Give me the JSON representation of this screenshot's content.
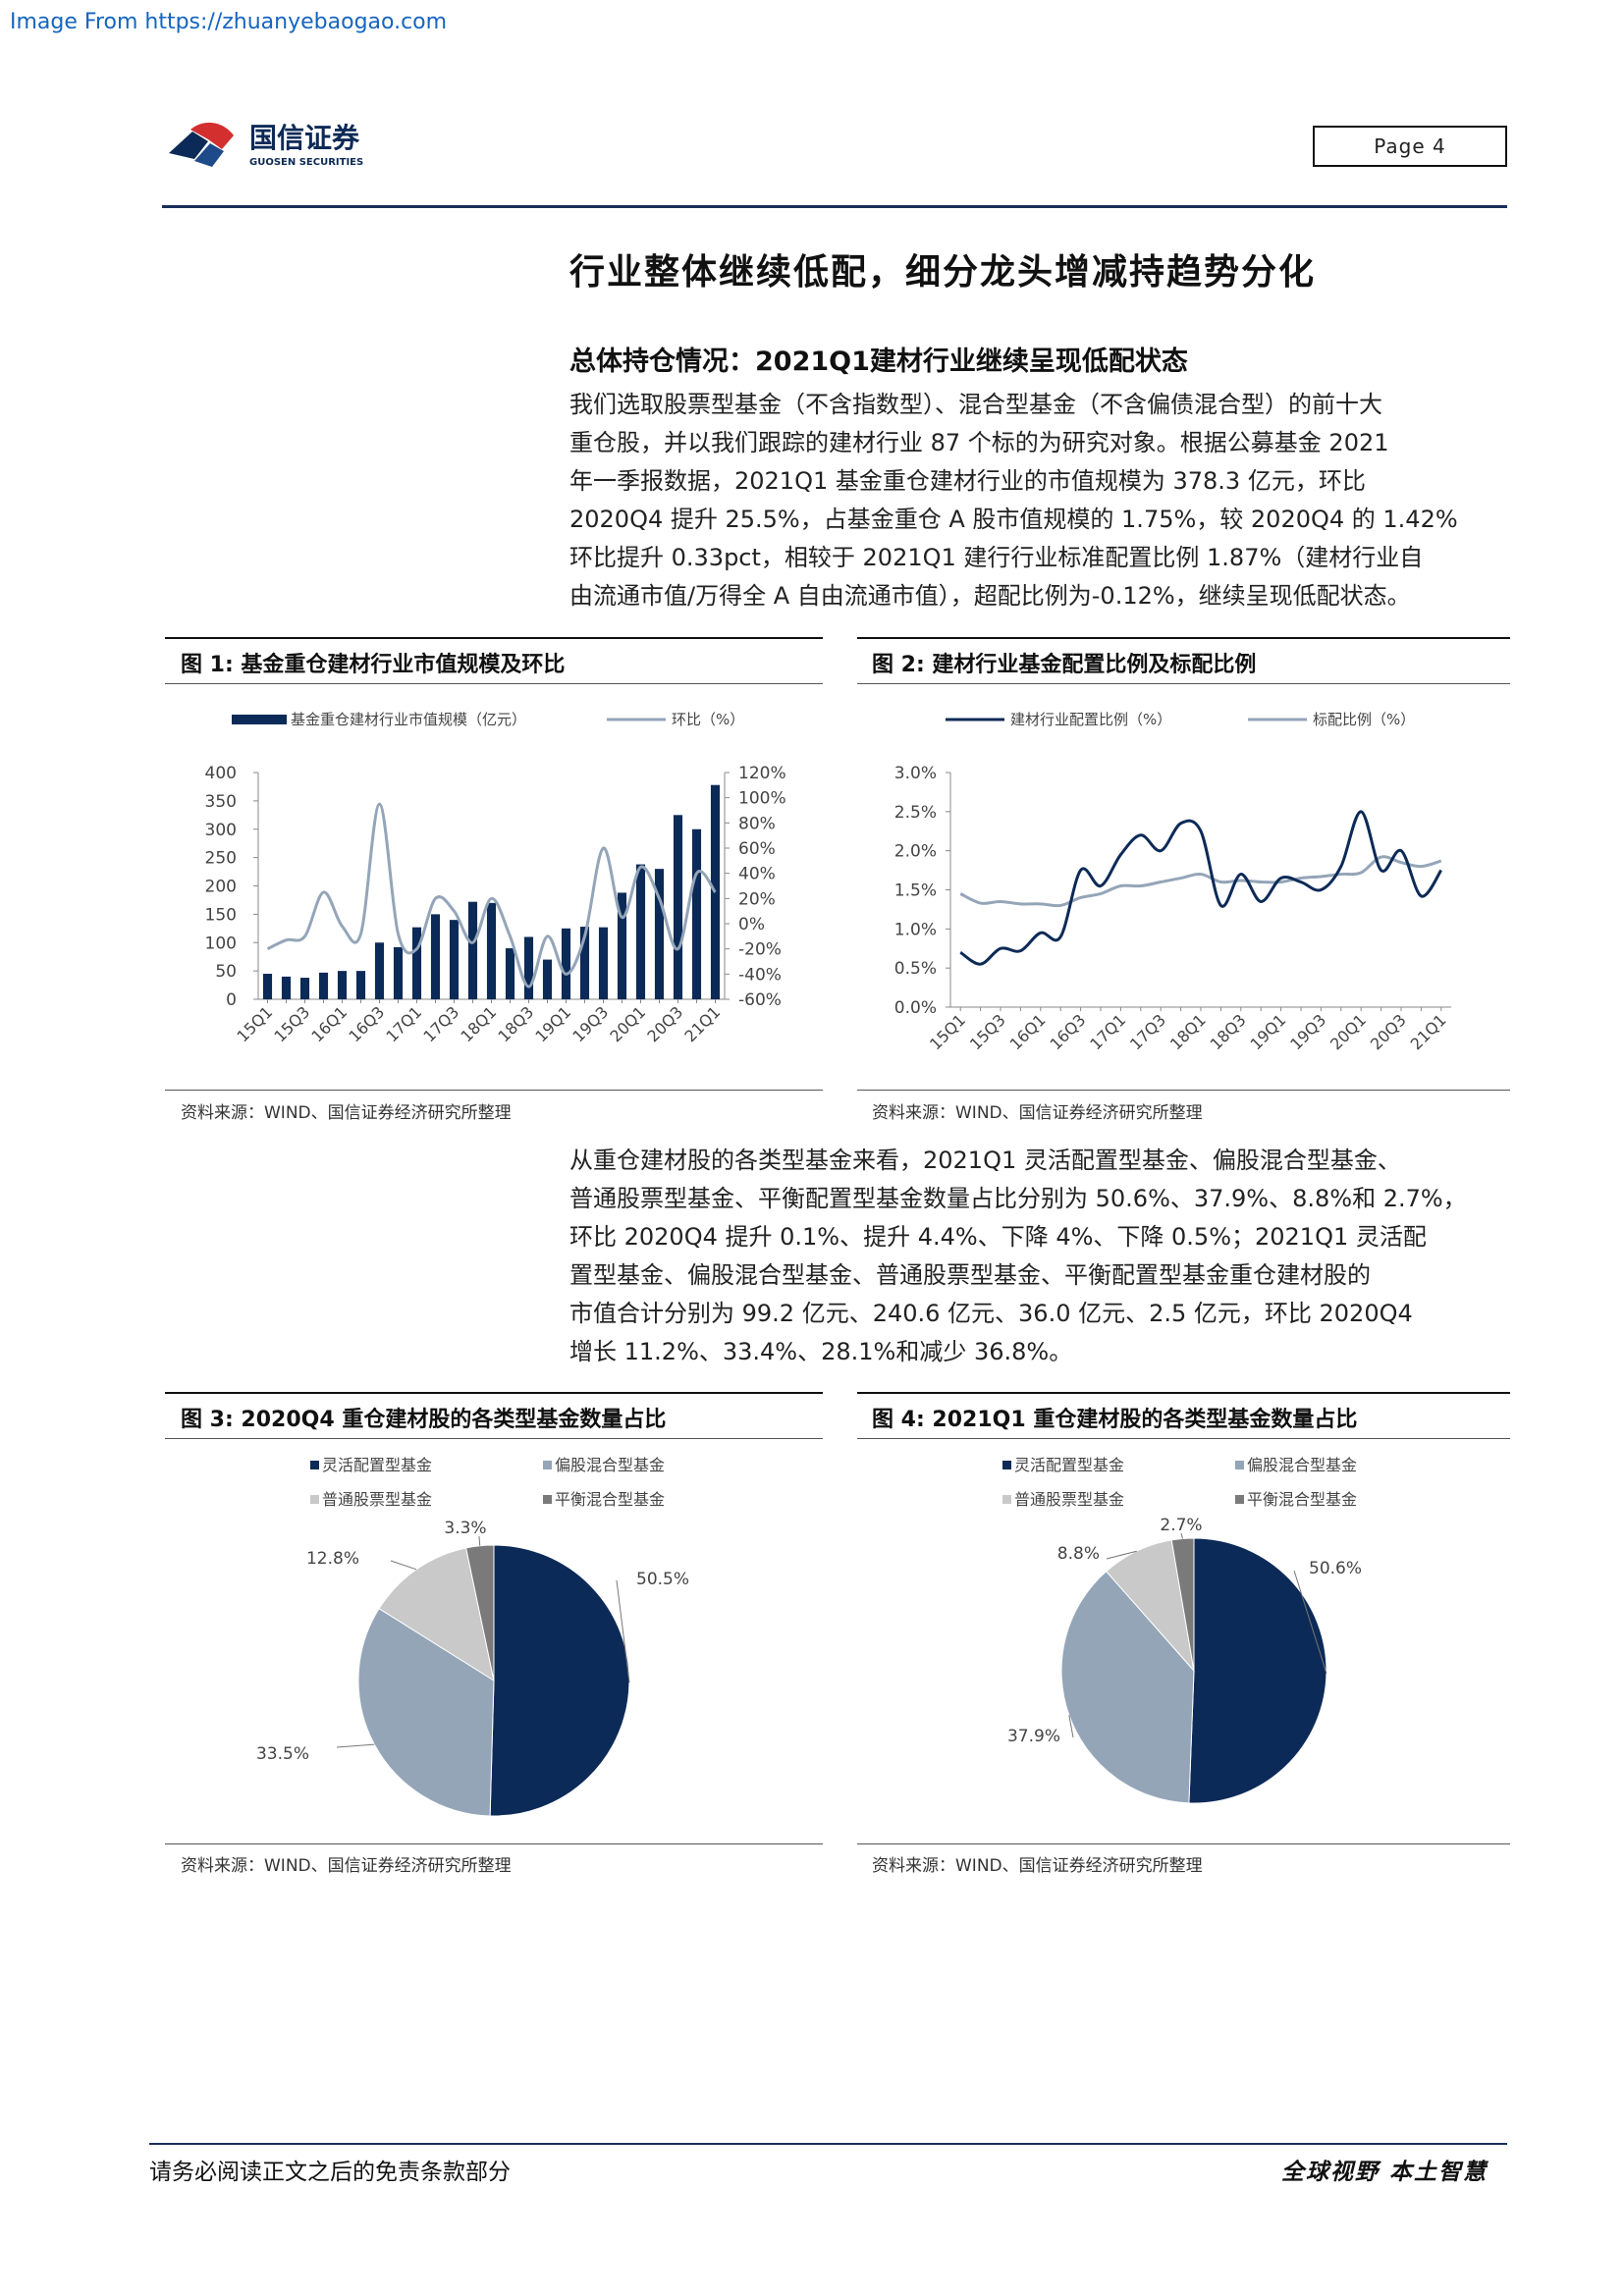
{
  "watermark": "Image From https://zhuanyebaogao.com",
  "header": {
    "logo_cn": "国信证券",
    "logo_en": "GUOSEN SECURITIES",
    "page_label": "Page  4"
  },
  "main_title": "行业整体继续低配，细分龙头增减持趋势分化",
  "sub_title": "总体持仓情况：2021Q1建材行业继续呈现低配状态",
  "para1": [
    "我们选取股票型基金（不含指数型）、混合型基金（不含偏债混合型）的前十大",
    "重仓股，并以我们跟踪的建材行业 87 个标的为研究对象。根据公募基金 2021",
    "年一季报数据，2021Q1 基金重仓建材行业的市值规模为 378.3 亿元，环比",
    "2020Q4 提升 25.5%，占基金重仓 A 股市值规模的 1.75%，较 2020Q4 的 1.42%",
    "环比提升 0.33pct，相较于 2021Q1 建行行业标准配置比例 1.87%（建材行业自",
    "由流通市值/万得全 A 自由流通市值），超配比例为-0.12%，继续呈现低配状态。"
  ],
  "para2": [
    "从重仓建材股的各类型基金来看，2021Q1 灵活配置型基金、偏股混合型基金、",
    "普通股票型基金、平衡配置型基金数量占比分别为 50.6%、37.9%、8.8%和 2.7%，",
    "环比 2020Q4 提升 0.1%、提升 4.4%、下降 4%、下降 0.5%；2021Q1 灵活配",
    "置型基金、偏股混合型基金、普通股票型基金、平衡配置型基金重仓建材股的",
    "市值合计分别为 99.2 亿元、240.6 亿元、36.0 亿元、2.5 亿元，环比 2020Q4",
    "增长 11.2%、33.4%、28.1%和减少 36.8%。"
  ],
  "fig1_title": "图 1:  基金重仓建材行业市值规模及环比",
  "fig2_title": "图 2:  建材行业基金配置比例及标配比例",
  "fig3_title": "图 3:  2020Q4 重仓建材股的各类型基金数量占比",
  "fig4_title": "图 4:  2021Q1 重仓建材股的各类型基金数量占比",
  "source_text": "资料来源：WIND、国信证券经济研究所整理",
  "footer": {
    "left": "请务必阅读正文之后的免责条款部分",
    "right": "全球视野  本土智慧"
  },
  "colors": {
    "navy": "#0c2a57",
    "gray_blue": "#94a5b8",
    "light_gray": "#c9c9c9",
    "dark_gray": "#7a7a7a"
  },
  "chart_data": [
    {
      "type": "bar",
      "id": "fig1",
      "legend": [
        "基金重仓建材行业市值规模（亿元）",
        "环比（%）"
      ],
      "legend_placement": "top",
      "categories": [
        "15Q1",
        "15Q2",
        "15Q3",
        "15Q4",
        "16Q1",
        "16Q2",
        "16Q3",
        "16Q4",
        "17Q1",
        "17Q2",
        "17Q3",
        "17Q4",
        "18Q1",
        "18Q2",
        "18Q3",
        "18Q4",
        "19Q1",
        "19Q2",
        "19Q3",
        "19Q4",
        "20Q1",
        "20Q2",
        "20Q3",
        "20Q4",
        "21Q1"
      ],
      "tick_labels": [
        "15Q1",
        "15Q3",
        "16Q1",
        "16Q3",
        "17Q1",
        "17Q3",
        "18Q1",
        "18Q3",
        "19Q1",
        "19Q3",
        "20Q1",
        "20Q3",
        "21Q1"
      ],
      "series": [
        {
          "name": "基金重仓建材行业市值规模（亿元）",
          "axis": "left",
          "values": [
            45,
            40,
            38,
            47,
            50,
            50,
            100,
            92,
            127,
            150,
            140,
            172,
            170,
            90,
            110,
            70,
            125,
            128,
            127,
            188,
            238,
            230,
            325,
            300,
            378
          ]
        },
        {
          "name": "环比（%）",
          "axis": "right",
          "values": [
            -20,
            -13,
            -10,
            25,
            -2,
            -8,
            95,
            -8,
            -20,
            20,
            10,
            -15,
            20,
            -10,
            -50,
            -10,
            -40,
            -10,
            60,
            5,
            45,
            20,
            -20,
            40,
            25
          ]
        }
      ],
      "ylim_left": [
        0,
        400
      ],
      "yticks_left": [
        "0",
        "50",
        "100",
        "150",
        "200",
        "250",
        "300",
        "350",
        "400"
      ],
      "ylim_right": [
        -60,
        120
      ],
      "yticks_right": [
        "-60%",
        "-40%",
        "-20%",
        "0%",
        "20%",
        "40%",
        "60%",
        "80%",
        "100%",
        "120%"
      ]
    },
    {
      "type": "line",
      "id": "fig2",
      "legend": [
        "建材行业配置比例（%）",
        "标配比例（%）"
      ],
      "legend_placement": "top",
      "categories": [
        "15Q1",
        "15Q2",
        "15Q3",
        "15Q4",
        "16Q1",
        "16Q2",
        "16Q3",
        "16Q4",
        "17Q1",
        "17Q2",
        "17Q3",
        "17Q4",
        "18Q1",
        "18Q2",
        "18Q3",
        "18Q4",
        "19Q1",
        "19Q2",
        "19Q3",
        "19Q4",
        "20Q1",
        "20Q2",
        "20Q3",
        "20Q4",
        "21Q1"
      ],
      "tick_labels": [
        "15Q1",
        "15Q3",
        "16Q1",
        "16Q3",
        "17Q1",
        "17Q3",
        "18Q1",
        "18Q3",
        "19Q1",
        "19Q3",
        "20Q1",
        "20Q3",
        "21Q1"
      ],
      "series": [
        {
          "name": "建材行业配置比例（%）",
          "values": [
            0.7,
            0.55,
            0.75,
            0.72,
            0.95,
            0.9,
            1.75,
            1.55,
            1.95,
            2.2,
            2.0,
            2.35,
            2.25,
            1.3,
            1.7,
            1.35,
            1.65,
            1.6,
            1.5,
            1.8,
            2.5,
            1.75,
            2.0,
            1.42,
            1.75
          ]
        },
        {
          "name": "标配比例（%）",
          "values": [
            1.45,
            1.33,
            1.35,
            1.32,
            1.32,
            1.3,
            1.4,
            1.45,
            1.55,
            1.55,
            1.6,
            1.65,
            1.7,
            1.6,
            1.62,
            1.6,
            1.6,
            1.65,
            1.67,
            1.7,
            1.72,
            1.92,
            1.85,
            1.8,
            1.87
          ]
        }
      ],
      "ylim": [
        0,
        3
      ],
      "yticks": [
        "0.0%",
        "0.5%",
        "1.0%",
        "1.5%",
        "2.0%",
        "2.5%",
        "3.0%"
      ]
    },
    {
      "type": "pie",
      "id": "fig3",
      "legend": [
        "灵活配置型基金",
        "偏股混合型基金",
        "普通股票型基金",
        "平衡混合型基金"
      ],
      "values": [
        50.5,
        33.5,
        12.8,
        3.3
      ],
      "labels": [
        "50.5%",
        "33.5%",
        "12.8%",
        "3.3%"
      ]
    },
    {
      "type": "pie",
      "id": "fig4",
      "legend": [
        "灵活配置型基金",
        "偏股混合型基金",
        "普通股票型基金",
        "平衡混合型基金"
      ],
      "values": [
        50.6,
        37.9,
        8.8,
        2.7
      ],
      "labels": [
        "50.6%",
        "37.9%",
        "8.8%",
        "2.7%"
      ]
    }
  ]
}
